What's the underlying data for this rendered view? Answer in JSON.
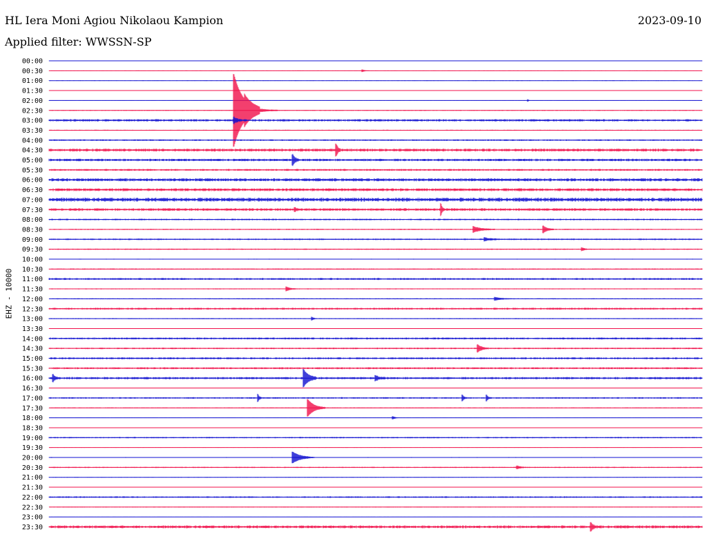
{
  "header": {
    "station": "HL Iera Moni Agiou Nikolaou Kampion",
    "date": "2023-09-10",
    "filter": "Applied filter: WWSSN-SP"
  },
  "colors": {
    "even_trace": "#1010d0",
    "odd_trace": "#f0104a"
  },
  "chart_data": {
    "type": "line",
    "title": "HL Iera Moni Agiou Nikolaou Kampion",
    "ylabel": "EHZ - 10000",
    "xlabel": "",
    "rows": [
      "00:00",
      "00:30",
      "01:00",
      "01:30",
      "02:00",
      "02:30",
      "03:00",
      "03:30",
      "04:00",
      "04:30",
      "05:00",
      "05:30",
      "06:00",
      "06:30",
      "07:00",
      "07:30",
      "08:00",
      "08:30",
      "09:00",
      "09:30",
      "10:00",
      "10:30",
      "11:00",
      "11:30",
      "12:00",
      "12:30",
      "13:00",
      "13:30",
      "14:00",
      "14:30",
      "15:00",
      "15:30",
      "16:00",
      "16:30",
      "17:00",
      "17:30",
      "18:00",
      "18:30",
      "19:00",
      "19:30",
      "20:00",
      "20:30",
      "21:00",
      "21:30",
      "22:00",
      "22:30",
      "23:00",
      "23:30"
    ],
    "row_minutes": 30,
    "noise_level": [
      0.3,
      0.3,
      0.3,
      0.3,
      0.3,
      0.5,
      1.2,
      0.5,
      0.8,
      1.5,
      1.3,
      1.0,
      1.6,
      1.5,
      2.0,
      1.4,
      0.8,
      0.6,
      0.8,
      0.6,
      0.4,
      0.6,
      1.0,
      0.5,
      0.5,
      1.0,
      0.5,
      0.3,
      1.0,
      0.8,
      1.0,
      1.0,
      1.2,
      0.3,
      0.8,
      0.5,
      0.3,
      0.3,
      0.7,
      0.3,
      0.4,
      0.6,
      0.3,
      0.3,
      0.8,
      0.4,
      0.3,
      1.5
    ],
    "events": [
      {
        "row": 1,
        "minute": 14.4,
        "amplitude": 1.5,
        "duration": 0.3
      },
      {
        "row": 4,
        "minute": 22.0,
        "amplitude": 1.5,
        "duration": 0.1
      },
      {
        "row": 5,
        "minute": 8.5,
        "amplitude": 52,
        "duration": 1.2
      },
      {
        "row": 5,
        "minute": 9.0,
        "amplitude": 7,
        "duration": 1.5
      },
      {
        "row": 6,
        "minute": 8.5,
        "amplitude": 4,
        "duration": 0.4
      },
      {
        "row": 9,
        "minute": 13.2,
        "amplitude": 8,
        "duration": 0.2
      },
      {
        "row": 10,
        "minute": 11.2,
        "amplitude": 7,
        "duration": 0.3
      },
      {
        "row": 15,
        "minute": 18.0,
        "amplitude": 8,
        "duration": 0.15
      },
      {
        "row": 15,
        "minute": 11.3,
        "amplitude": 2,
        "duration": 0.3
      },
      {
        "row": 17,
        "minute": 19.5,
        "amplitude": 4,
        "duration": 1.0
      },
      {
        "row": 17,
        "minute": 22.7,
        "amplitude": 5,
        "duration": 0.5
      },
      {
        "row": 18,
        "minute": 20.0,
        "amplitude": 2,
        "duration": 0.8
      },
      {
        "row": 19,
        "minute": 24.5,
        "amplitude": 2,
        "duration": 0.3
      },
      {
        "row": 23,
        "minute": 10.9,
        "amplitude": 3,
        "duration": 0.5
      },
      {
        "row": 24,
        "minute": 20.5,
        "amplitude": 2,
        "duration": 0.8
      },
      {
        "row": 26,
        "minute": 12.1,
        "amplitude": 2,
        "duration": 0.2
      },
      {
        "row": 29,
        "minute": 19.7,
        "amplitude": 5,
        "duration": 0.5
      },
      {
        "row": 32,
        "minute": 0.2,
        "amplitude": 5,
        "duration": 0.2
      },
      {
        "row": 32,
        "minute": 11.7,
        "amplitude": 12,
        "duration": 0.6
      },
      {
        "row": 32,
        "minute": 15.0,
        "amplitude": 3,
        "duration": 0.5
      },
      {
        "row": 34,
        "minute": 9.6,
        "amplitude": 5,
        "duration": 0.2
      },
      {
        "row": 34,
        "minute": 19.0,
        "amplitude": 4,
        "duration": 0.2
      },
      {
        "row": 34,
        "minute": 20.1,
        "amplitude": 4,
        "duration": 0.2
      },
      {
        "row": 35,
        "minute": 11.9,
        "amplitude": 12,
        "duration": 0.8
      },
      {
        "row": 36,
        "minute": 15.8,
        "amplitude": 2,
        "duration": 0.3
      },
      {
        "row": 40,
        "minute": 11.2,
        "amplitude": 8,
        "duration": 1.0
      },
      {
        "row": 41,
        "minute": 21.5,
        "amplitude": 2,
        "duration": 0.5
      },
      {
        "row": 47,
        "minute": 24.9,
        "amplitude": 5,
        "duration": 0.3
      }
    ]
  },
  "ylabel": "EHZ - 10000"
}
